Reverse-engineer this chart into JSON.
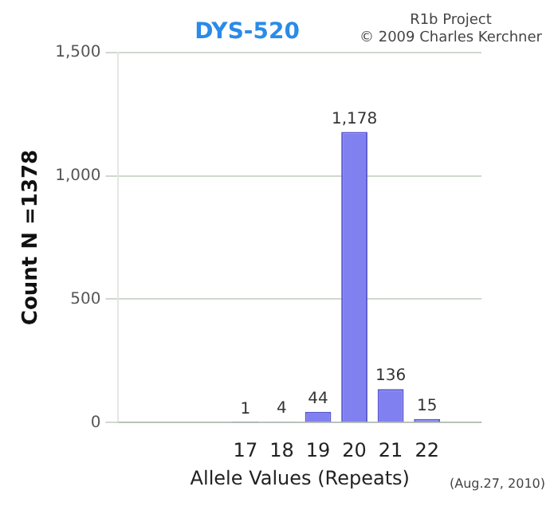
{
  "chart_data": {
    "type": "bar",
    "title": "DYS-520",
    "xlabel": "Allele Values (Repeats)",
    "ylabel": "Count N =1378",
    "annotations": [
      "R1b Project",
      "© 2009 Charles Kerchner",
      "(Aug.27, 2010)"
    ],
    "categories": [
      null,
      null,
      null,
      "17",
      "18",
      "19",
      "20",
      "21",
      "22",
      null
    ],
    "values": [
      null,
      null,
      null,
      1,
      4,
      44,
      1178,
      136,
      15,
      null
    ],
    "value_labels": [
      null,
      null,
      null,
      "1",
      "4",
      "44",
      "1,178",
      "136",
      "15",
      null
    ],
    "color": "#8080f0",
    "ylim": [
      0,
      1500
    ],
    "yticks": [
      0,
      500,
      {
        "value": 1000,
        "label": "1,000"
      },
      {
        "value": 1500,
        "label": "1,500"
      }
    ],
    "grid": "y",
    "legend": false
  }
}
